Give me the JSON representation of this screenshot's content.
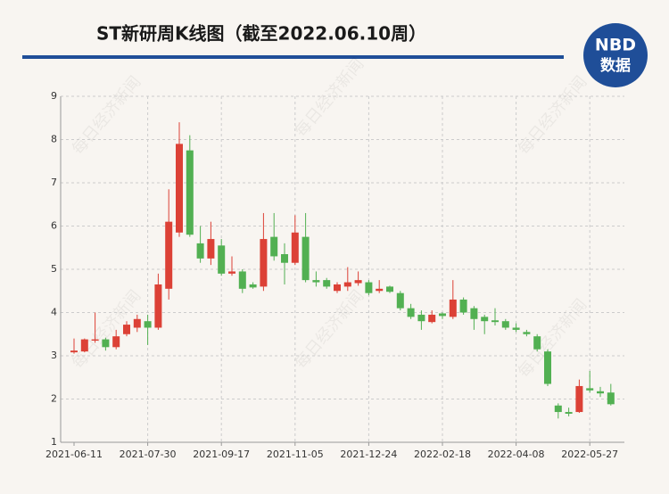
{
  "chart_data": {
    "type": "candlestick",
    "title": "ST新研周K线图（截至2022.06.10周）",
    "logo": [
      "NBD",
      "数据"
    ],
    "watermark": "每日经济新闻",
    "categories": [
      "2021-06-11",
      null,
      null,
      null,
      null,
      null,
      null,
      "2021-07-30",
      null,
      null,
      null,
      null,
      null,
      null,
      "2021-09-17",
      null,
      null,
      null,
      null,
      null,
      null,
      "2021-11-05",
      null,
      null,
      null,
      null,
      null,
      null,
      "2021-12-24",
      null,
      null,
      null,
      null,
      null,
      null,
      "2022-02-18",
      null,
      null,
      null,
      null,
      null,
      null,
      "2022-04-08",
      null,
      null,
      null,
      null,
      null,
      null,
      "2022-05-27",
      null,
      null
    ],
    "open": [
      3.08,
      3.1,
      3.35,
      3.38,
      3.2,
      3.5,
      3.65,
      3.8,
      3.65,
      4.55,
      5.85,
      7.75,
      5.6,
      5.25,
      5.55,
      4.9,
      4.95,
      4.65,
      4.6,
      5.75,
      5.35,
      5.15,
      5.75,
      4.75,
      4.75,
      4.5,
      4.6,
      4.68,
      4.7,
      4.5,
      4.6,
      4.45,
      4.1,
      3.95,
      3.78,
      3.98,
      3.9,
      4.3,
      4.1,
      3.9,
      3.82,
      3.8,
      3.65,
      3.55,
      3.45,
      3.1,
      1.85,
      1.7,
      1.7,
      2.25,
      2.18,
      2.15
    ],
    "high": [
      3.4,
      3.4,
      4.0,
      3.42,
      3.6,
      3.8,
      3.95,
      3.95,
      4.9,
      6.85,
      8.4,
      8.1,
      6.0,
      6.1,
      5.7,
      5.3,
      5.0,
      4.7,
      6.3,
      6.3,
      5.6,
      6.25,
      6.3,
      4.95,
      4.8,
      4.7,
      5.05,
      4.95,
      4.75,
      4.75,
      4.62,
      4.5,
      4.2,
      4.05,
      4.05,
      4.0,
      4.75,
      4.35,
      4.15,
      3.95,
      4.1,
      3.85,
      3.75,
      3.6,
      3.5,
      3.15,
      1.9,
      1.8,
      2.45,
      2.65,
      2.28,
      2.35
    ],
    "low": [
      3.05,
      3.08,
      3.3,
      3.12,
      3.15,
      3.45,
      3.55,
      3.25,
      3.6,
      4.3,
      5.75,
      5.75,
      5.15,
      5.1,
      4.85,
      4.85,
      4.45,
      4.55,
      4.5,
      5.2,
      4.65,
      5.1,
      4.7,
      4.6,
      4.55,
      4.45,
      4.5,
      4.62,
      4.4,
      4.45,
      4.45,
      4.05,
      3.85,
      3.6,
      3.75,
      3.85,
      3.85,
      3.95,
      3.6,
      3.5,
      3.7,
      3.6,
      3.55,
      3.45,
      3.1,
      2.3,
      1.55,
      1.6,
      1.68,
      2.15,
      2.05,
      1.85
    ],
    "close": [
      3.12,
      3.38,
      3.38,
      3.2,
      3.45,
      3.72,
      3.85,
      3.65,
      4.65,
      6.1,
      7.9,
      5.8,
      5.25,
      5.7,
      4.9,
      4.95,
      4.55,
      4.58,
      5.7,
      5.3,
      5.15,
      5.85,
      4.75,
      4.7,
      4.6,
      4.65,
      4.7,
      4.75,
      4.45,
      4.55,
      4.48,
      4.1,
      3.9,
      3.8,
      3.95,
      3.92,
      4.3,
      4.0,
      3.85,
      3.8,
      3.78,
      3.65,
      3.6,
      3.5,
      3.15,
      2.35,
      1.7,
      1.66,
      2.3,
      2.2,
      2.13,
      1.88
    ],
    "up_color": "#dc4136",
    "down_color": "#52b052",
    "ylim": [
      1,
      9
    ],
    "yticks": [
      1,
      2,
      3,
      4,
      5,
      6,
      7,
      8,
      9
    ],
    "grid": true
  }
}
